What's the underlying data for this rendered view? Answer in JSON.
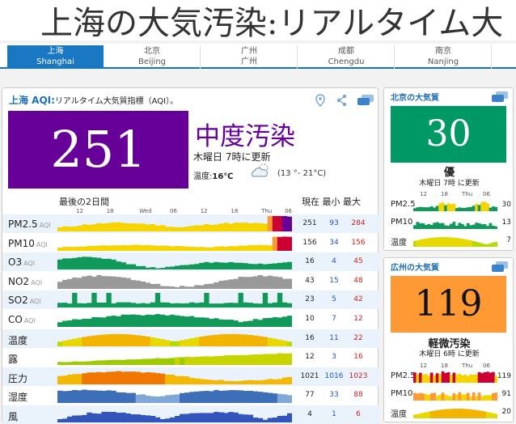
{
  "header": {
    "title": "上海の大気汚染:リアルタイム大"
  },
  "tabs": [
    {
      "l1": "上海",
      "l2": "Shanghai",
      "selected": true
    },
    {
      "l1": "北京",
      "l2": "Beijing"
    },
    {
      "l1": "广州",
      "l2": "广州"
    },
    {
      "l1": "成都",
      "l2": "Chengdu"
    },
    {
      "l1": "南京",
      "l2": "Nanjing"
    }
  ],
  "main": {
    "city": "上海 AQI:",
    "subtitle": "リアルタイム大気質指標（AQI）。",
    "aqi": "251",
    "level": "中度汚染",
    "updated": "木曜日 7時に更新",
    "temp_label": "温度:",
    "temp_value": "16℃",
    "temp_range": "(13 °- 21°C)",
    "last2": "最後の2日間",
    "col_current": "現在",
    "col_min": "最小",
    "col_max": "最大",
    "axis": [
      {
        "t": "12",
        "p": 0.1
      },
      {
        "t": "18",
        "p": 0.23
      },
      {
        "t": "Wed",
        "p": 0.37
      },
      {
        "t": "06",
        "p": 0.5
      },
      {
        "t": "12",
        "p": 0.63
      },
      {
        "t": "18",
        "p": 0.76
      },
      {
        "t": "Thu",
        "p": 0.89
      },
      {
        "t": "06",
        "p": 0.99
      }
    ],
    "colors": {
      "aqi_box": "#660099",
      "title": "#1f6fb5",
      "min": "#2255cc",
      "max": "#cc2222"
    },
    "rows": [
      {
        "name": "PM2.5",
        "unit": "AQI",
        "cur": "251",
        "min": "93",
        "max": "284",
        "kind": "aqi"
      },
      {
        "name": "PM10",
        "unit": "AQI",
        "cur": "156",
        "min": "34",
        "max": "156",
        "kind": "aqi10"
      },
      {
        "name": "O3",
        "unit": "AQI",
        "cur": "16",
        "min": "4",
        "max": "45",
        "kind": "green"
      },
      {
        "name": "NO2",
        "unit": "AQI",
        "cur": "43",
        "min": "15",
        "max": "48",
        "kind": "gray"
      },
      {
        "name": "SO2",
        "unit": "AQI",
        "cur": "23",
        "min": "5",
        "max": "42",
        "kind": "green2"
      },
      {
        "name": "CO",
        "unit": "AQI",
        "cur": "10",
        "min": "7",
        "max": "12",
        "kind": "green3"
      },
      {
        "name": "温度",
        "unit": "",
        "cur": "16",
        "min": "11",
        "max": "22",
        "kind": "temp"
      },
      {
        "name": "露",
        "unit": "",
        "cur": "12",
        "min": "3",
        "max": "16",
        "kind": "dew"
      },
      {
        "name": "圧力",
        "unit": "",
        "cur": "1021",
        "min": "1016",
        "max": "1023",
        "kind": "press"
      },
      {
        "name": "湿度",
        "unit": "",
        "cur": "77",
        "min": "33",
        "max": "88",
        "kind": "hum"
      },
      {
        "name": "風",
        "unit": "",
        "cur": "4",
        "min": "1",
        "max": "6",
        "kind": "wind"
      }
    ]
  },
  "beijing": {
    "title": "北京の大気質",
    "aqi": "30",
    "level": "優",
    "updated": "木曜日 7時 に更新",
    "axis": [
      "12",
      "18",
      "Thu",
      "06"
    ],
    "rows": [
      {
        "name": "PM2.5",
        "val": "30"
      },
      {
        "name": "PM10",
        "val": "13"
      },
      {
        "name": "温度",
        "val": "7"
      }
    ]
  },
  "guangzhou": {
    "title": "広州の大気質",
    "aqi": "119",
    "level": "軽微汚染",
    "updated": "木曜日 6時 に更新",
    "axis": [
      "12",
      "18",
      "Thu",
      "06"
    ],
    "rows": [
      {
        "name": "PM2.5",
        "val": "119"
      },
      {
        "name": "PM10",
        "val": "91"
      },
      {
        "name": "温度",
        "val": "20"
      }
    ]
  }
}
